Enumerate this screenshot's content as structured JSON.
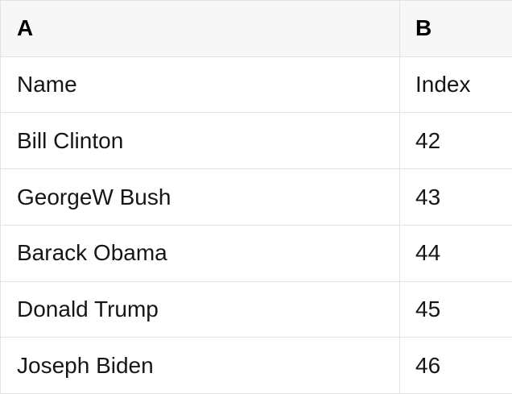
{
  "table": {
    "column_headers": [
      "A",
      "B"
    ],
    "rows": [
      {
        "a": "Name",
        "b": "Index"
      },
      {
        "a": "Bill Clinton",
        "b": "42"
      },
      {
        "a": "GeorgeW Bush",
        "b": "43"
      },
      {
        "a": "Barack Obama",
        "b": "44"
      },
      {
        "a": "Donald Trump",
        "b": "45"
      },
      {
        "a": "Joseph Biden",
        "b": "46"
      }
    ],
    "colors": {
      "header_background": "#f7f7f7",
      "grid_border": "#e3e3e3",
      "header_text": "#000000",
      "cell_text": "#161616"
    }
  }
}
